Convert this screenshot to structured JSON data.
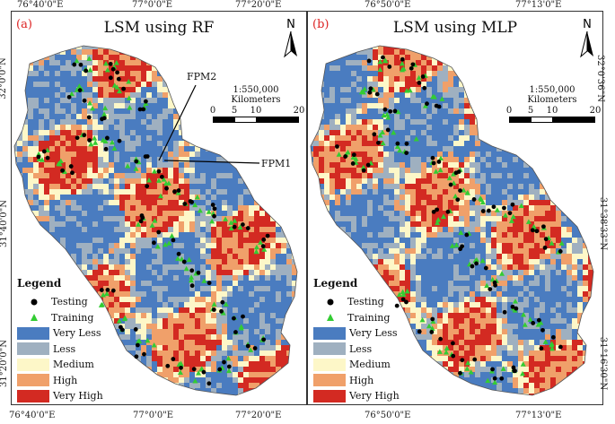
{
  "panels": [
    {
      "letter": "(a)",
      "title": "LSM using RF"
    },
    {
      "letter": "(b)",
      "title": "LSM using MLP"
    }
  ],
  "north_label": "N",
  "scale": {
    "ratio": "1:550,000",
    "unit": "Kilometers",
    "ticks": [
      "0",
      "5",
      "10",
      "20"
    ]
  },
  "legend": {
    "title": "Legend",
    "items": [
      {
        "label": "Testing",
        "kind": "point",
        "color": "#000000"
      },
      {
        "label": "Training",
        "kind": "triangle",
        "color": "#33cc33"
      },
      {
        "label": "Very Less",
        "kind": "swatch",
        "color": "#4a7cc0"
      },
      {
        "label": "Less",
        "kind": "swatch",
        "color": "#9fb0c0"
      },
      {
        "label": "Medium",
        "kind": "swatch",
        "color": "#fdf7c8"
      },
      {
        "label": "High",
        "kind": "swatch",
        "color": "#f0a06a"
      },
      {
        "label": "Very High",
        "kind": "swatch",
        "color": "#d32a22"
      }
    ]
  },
  "annotations": {
    "fpm1": "FPM1",
    "fpm2": "FPM2"
  },
  "coords": {
    "a_top": [
      "76°40'0\"E",
      "77°0'0\"E",
      "77°20'0\"E"
    ],
    "a_bottom": [
      "76°40'0\"E",
      "77°0'0\"E",
      "77°20'0\"E"
    ],
    "a_left": [
      "32°0'0\"N",
      "31°40'0\"N",
      "31°20'0\"N"
    ],
    "b_top": [
      "76°50'0\"E",
      "77°13'0\"E"
    ],
    "b_bottom": [
      "76°50'0\"E",
      "77°13'0\"E"
    ],
    "b_right": [
      "32°0'36\"N",
      "31°38'33\"N",
      "31°16'30\"N"
    ]
  }
}
